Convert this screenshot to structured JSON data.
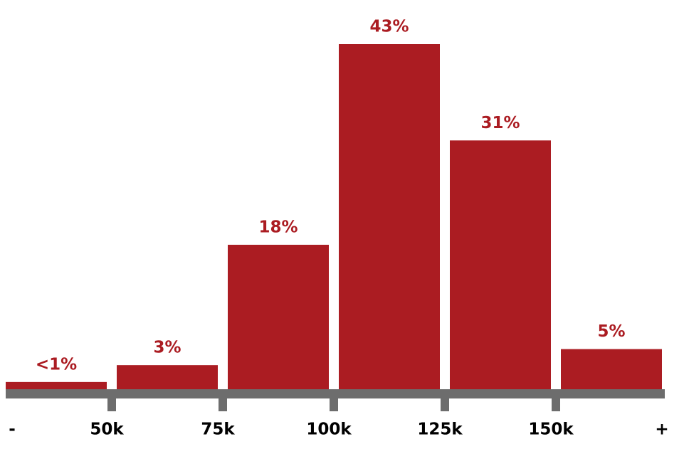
{
  "chart_data": {
    "type": "histogram",
    "bins": [
      "-",
      "50k",
      "75k",
      "100k",
      "125k",
      "150k",
      "+"
    ],
    "values": [
      0.9,
      3,
      18,
      43,
      31,
      5
    ],
    "value_labels": [
      "<1%",
      "3%",
      "18%",
      "43%",
      "31%",
      "5%"
    ],
    "color": "#ab1c22",
    "axis_color": "#6d6d6d"
  }
}
